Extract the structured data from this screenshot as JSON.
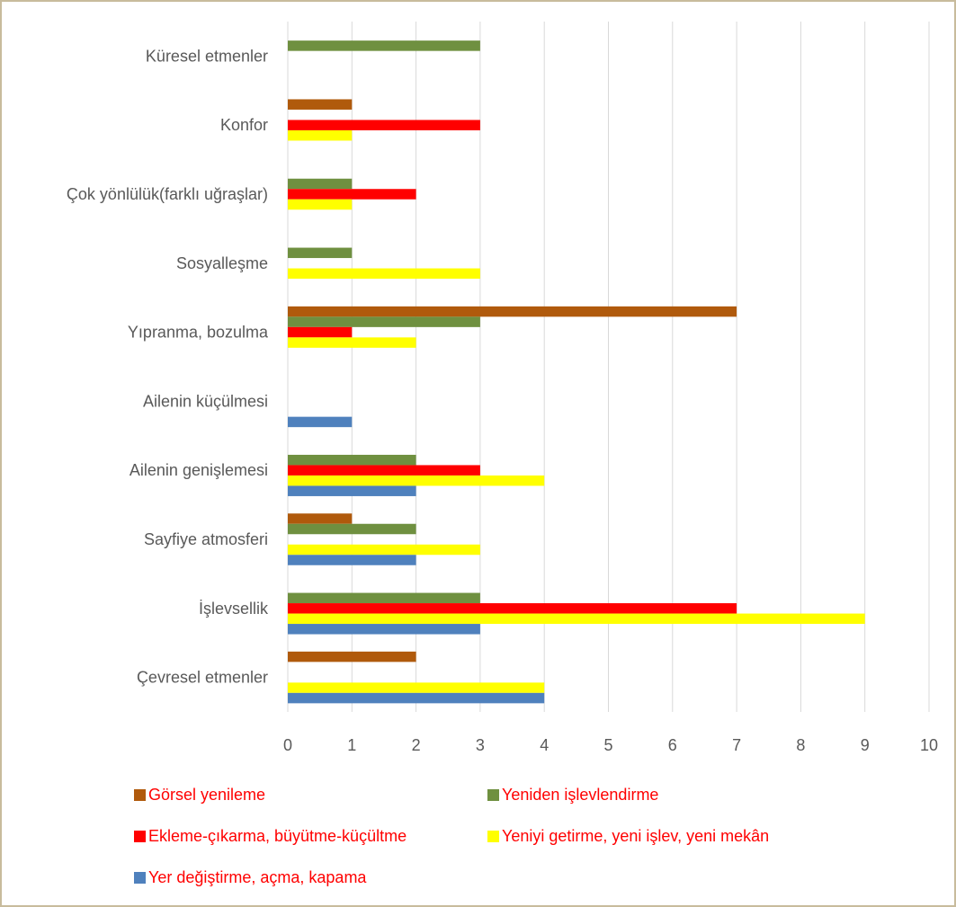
{
  "chart_data": {
    "type": "bar",
    "orientation": "horizontal",
    "categories": [
      "Küresel etmenler",
      "Konfor",
      "Çok yönlülük(farklı uğraşlar)",
      "Sosyalleşme",
      "Yıpranma, bozulma",
      "Ailenin küçülmesi",
      "Ailenin genişlemesi",
      "Sayfiye atmosferi",
      "İşlevsellik",
      "Çevresel etmenler"
    ],
    "series": [
      {
        "name": "Görsel yenileme",
        "color": "#b05a0c",
        "values": [
          0,
          1,
          0,
          0,
          7,
          0,
          0,
          1,
          0,
          2
        ]
      },
      {
        "name": "Yeniden işlevlendirme",
        "color": "#6f9040",
        "values": [
          3,
          0,
          1,
          1,
          3,
          0,
          2,
          2,
          3,
          0
        ]
      },
      {
        "name": "Ekleme-çıkarma, büyütme-küçültme",
        "color": "#ff0000",
        "values": [
          0,
          3,
          2,
          0,
          1,
          0,
          3,
          0,
          7,
          0
        ]
      },
      {
        "name": "Yeniyi getirme, yeni işlev, yeni mekân",
        "color": "#ffff00",
        "values": [
          0,
          1,
          1,
          3,
          2,
          0,
          4,
          3,
          9,
          4
        ]
      },
      {
        "name": "Yer değiştirme, açma, kapama",
        "color": "#4f81bd",
        "values": [
          0,
          0,
          0,
          0,
          0,
          1,
          2,
          2,
          3,
          4
        ]
      }
    ],
    "xlim": [
      0,
      10
    ],
    "ticks": [
      "0",
      "1",
      "2",
      "3",
      "4",
      "5",
      "6",
      "7",
      "8",
      "9",
      "10"
    ],
    "grid": true,
    "legend_position": "bottom",
    "legend_text_color": "#ff0000",
    "gridline_color": "#d9d9d9",
    "label_color": "#595959"
  }
}
